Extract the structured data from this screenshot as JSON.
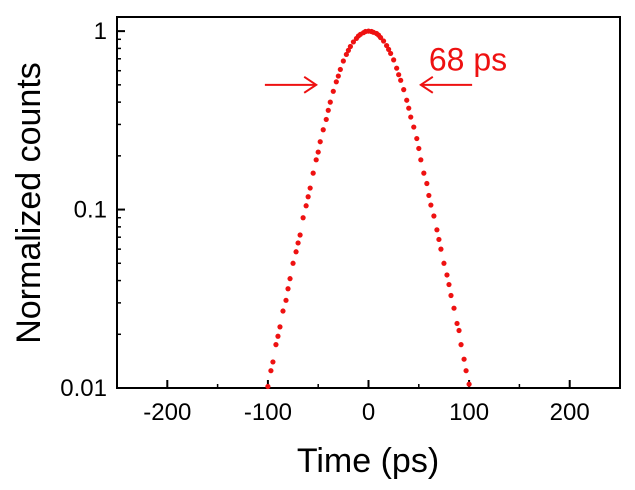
{
  "chart_data": {
    "type": "scatter",
    "title": "",
    "xlabel": "Time (ps)",
    "ylabel": "Normalized counts",
    "xlim": [
      -250,
      250
    ],
    "ylim": [
      0.01,
      1.2
    ],
    "yscale": "log",
    "x_ticks": [
      {
        "value": -200,
        "label": "-200"
      },
      {
        "value": -100,
        "label": "-100"
      },
      {
        "value": 0,
        "label": "0"
      },
      {
        "value": 100,
        "label": "100"
      },
      {
        "value": 200,
        "label": "200"
      }
    ],
    "y_ticks": [
      {
        "value": 0.01,
        "label": "0.01"
      },
      {
        "value": 0.1,
        "label": "0.1"
      },
      {
        "value": 1,
        "label": "1"
      }
    ],
    "series": [
      {
        "name": "Normalized counts",
        "color": "#ee1111",
        "points": [
          {
            "x": -100,
            "y": 0.0102
          },
          {
            "x": -97,
            "y": 0.0125
          },
          {
            "x": -95,
            "y": 0.014
          },
          {
            "x": -92,
            "y": 0.0175
          },
          {
            "x": -90,
            "y": 0.0195
          },
          {
            "x": -88,
            "y": 0.022
          },
          {
            "x": -85,
            "y": 0.027
          },
          {
            "x": -82,
            "y": 0.031
          },
          {
            "x": -80,
            "y": 0.036
          },
          {
            "x": -78,
            "y": 0.041
          },
          {
            "x": -75,
            "y": 0.05
          },
          {
            "x": -72,
            "y": 0.058
          },
          {
            "x": -70,
            "y": 0.065
          },
          {
            "x": -68,
            "y": 0.072
          },
          {
            "x": -65,
            "y": 0.09
          },
          {
            "x": -62,
            "y": 0.105
          },
          {
            "x": -60,
            "y": 0.118
          },
          {
            "x": -58,
            "y": 0.132
          },
          {
            "x": -55,
            "y": 0.16
          },
          {
            "x": -52,
            "y": 0.19
          },
          {
            "x": -50,
            "y": 0.21
          },
          {
            "x": -48,
            "y": 0.24
          },
          {
            "x": -45,
            "y": 0.28
          },
          {
            "x": -42,
            "y": 0.32
          },
          {
            "x": -40,
            "y": 0.36
          },
          {
            "x": -38,
            "y": 0.4
          },
          {
            "x": -35,
            "y": 0.46
          },
          {
            "x": -32,
            "y": 0.52
          },
          {
            "x": -30,
            "y": 0.56
          },
          {
            "x": -28,
            "y": 0.61
          },
          {
            "x": -25,
            "y": 0.68
          },
          {
            "x": -22,
            "y": 0.74
          },
          {
            "x": -20,
            "y": 0.78
          },
          {
            "x": -18,
            "y": 0.82
          },
          {
            "x": -15,
            "y": 0.87
          },
          {
            "x": -12,
            "y": 0.91
          },
          {
            "x": -10,
            "y": 0.94
          },
          {
            "x": -8,
            "y": 0.96
          },
          {
            "x": -5,
            "y": 0.98
          },
          {
            "x": -3,
            "y": 0.995
          },
          {
            "x": 0,
            "y": 1.0
          },
          {
            "x": 3,
            "y": 0.995
          },
          {
            "x": 5,
            "y": 0.985
          },
          {
            "x": 8,
            "y": 0.97
          },
          {
            "x": 10,
            "y": 0.95
          },
          {
            "x": 12,
            "y": 0.92
          },
          {
            "x": 15,
            "y": 0.88
          },
          {
            "x": 18,
            "y": 0.83
          },
          {
            "x": 20,
            "y": 0.79
          },
          {
            "x": 22,
            "y": 0.75
          },
          {
            "x": 25,
            "y": 0.69
          },
          {
            "x": 28,
            "y": 0.62
          },
          {
            "x": 30,
            "y": 0.57
          },
          {
            "x": 32,
            "y": 0.53
          },
          {
            "x": 35,
            "y": 0.47
          },
          {
            "x": 38,
            "y": 0.41
          },
          {
            "x": 40,
            "y": 0.37
          },
          {
            "x": 42,
            "y": 0.33
          },
          {
            "x": 45,
            "y": 0.29
          },
          {
            "x": 48,
            "y": 0.25
          },
          {
            "x": 50,
            "y": 0.22
          },
          {
            "x": 52,
            "y": 0.19
          },
          {
            "x": 55,
            "y": 0.16
          },
          {
            "x": 58,
            "y": 0.14
          },
          {
            "x": 60,
            "y": 0.12
          },
          {
            "x": 62,
            "y": 0.106
          },
          {
            "x": 65,
            "y": 0.092
          },
          {
            "x": 68,
            "y": 0.077
          },
          {
            "x": 70,
            "y": 0.068
          },
          {
            "x": 72,
            "y": 0.06
          },
          {
            "x": 75,
            "y": 0.05
          },
          {
            "x": 78,
            "y": 0.043
          },
          {
            "x": 80,
            "y": 0.038
          },
          {
            "x": 82,
            "y": 0.033
          },
          {
            "x": 85,
            "y": 0.028
          },
          {
            "x": 88,
            "y": 0.023
          },
          {
            "x": 90,
            "y": 0.021
          },
          {
            "x": 92,
            "y": 0.0175
          },
          {
            "x": 95,
            "y": 0.0145
          },
          {
            "x": 97,
            "y": 0.0125
          },
          {
            "x": 100,
            "y": 0.0105
          }
        ]
      }
    ],
    "annotations": [
      {
        "text": "68 ps",
        "kind": "fwhm-label",
        "x": 60,
        "y": 0.6
      },
      {
        "kind": "arrow-right",
        "from_x": -103,
        "to_x": -52,
        "y": 0.5
      },
      {
        "kind": "arrow-left",
        "from_x": 103,
        "to_x": 52,
        "y": 0.5
      }
    ],
    "grid": false,
    "legend": "none"
  }
}
